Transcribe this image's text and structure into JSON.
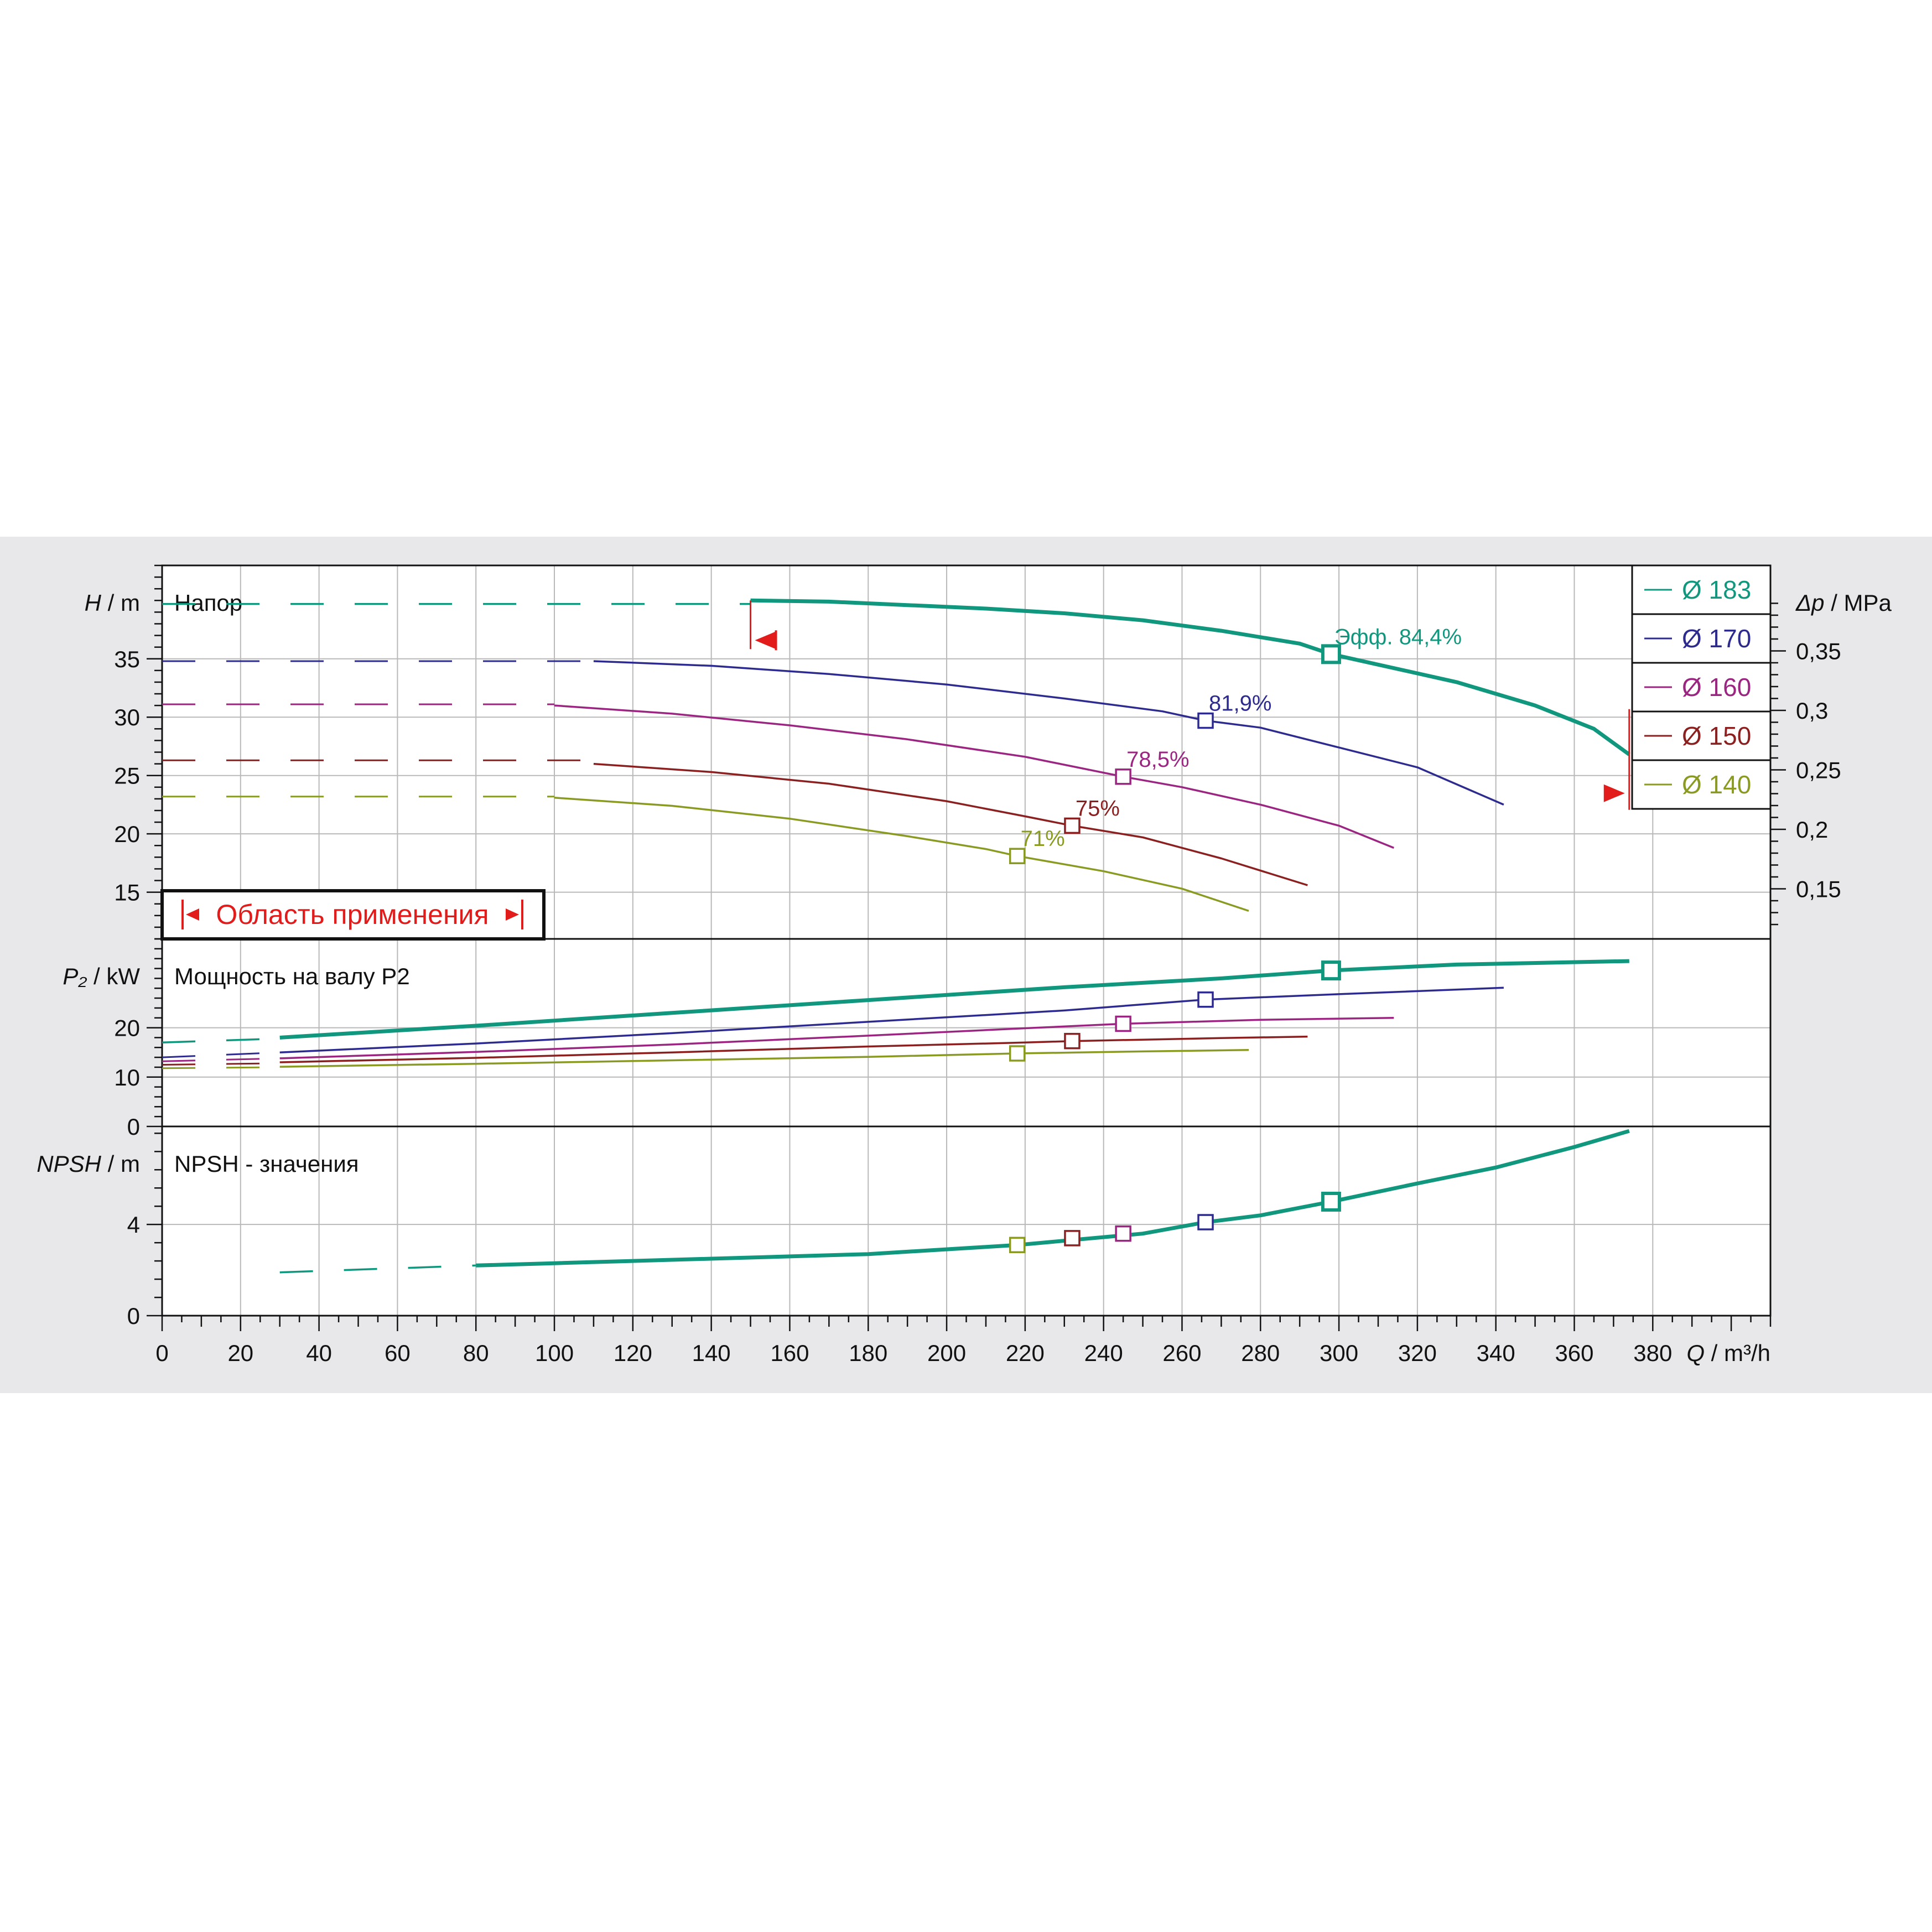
{
  "chart_data": {
    "type": "line",
    "x_axis": {
      "label_symbol": "Q",
      "label_unit": "/ m³/h",
      "min": 0,
      "max": 410,
      "ticks": [
        0,
        20,
        40,
        60,
        80,
        100,
        120,
        140,
        160,
        180,
        200,
        220,
        240,
        260,
        280,
        300,
        320,
        340,
        360,
        380
      ]
    },
    "panels": [
      {
        "id": "head",
        "title": "Напор",
        "y_symbol": "H",
        "y_unit": "/ m",
        "ylim": [
          11,
          43
        ],
        "y_ticks": [
          15,
          20,
          25,
          30,
          35
        ],
        "secondary_axis": {
          "symbol": "Δp",
          "unit": "/ MPa",
          "ticks": [
            0.15,
            0.2,
            0.25,
            0.3,
            0.35
          ]
        },
        "series": [
          {
            "name": "Ø 183",
            "color": "#12977f",
            "bold": true,
            "dashed": [
              [
                0,
                39.7
              ],
              [
                150,
                39.7
              ]
            ],
            "solid": [
              [
                150,
                40.0
              ],
              [
                170,
                39.9
              ],
              [
                190,
                39.6
              ],
              [
                210,
                39.3
              ],
              [
                230,
                38.9
              ],
              [
                250,
                38.3
              ],
              [
                270,
                37.4
              ],
              [
                290,
                36.3
              ],
              [
                298,
                35.4
              ],
              [
                310,
                34.5
              ],
              [
                330,
                33.0
              ],
              [
                350,
                31.0
              ],
              [
                365,
                29.0
              ],
              [
                374,
                26.8
              ]
            ],
            "bep": [
              298,
              35.4
            ],
            "eff_prefix": "Эфф.",
            "eff": "84,4%"
          },
          {
            "name": "Ø 170",
            "color": "#2e2b8f",
            "dashed": [
              [
                0,
                34.8
              ],
              [
                110,
                34.8
              ]
            ],
            "solid": [
              [
                110,
                34.8
              ],
              [
                140,
                34.4
              ],
              [
                170,
                33.7
              ],
              [
                200,
                32.8
              ],
              [
                230,
                31.6
              ],
              [
                255,
                30.5
              ],
              [
                266,
                29.7
              ],
              [
                280,
                29.1
              ],
              [
                300,
                27.4
              ],
              [
                320,
                25.7
              ],
              [
                342,
                22.5
              ]
            ],
            "bep": [
              266,
              29.7
            ],
            "eff": "81,9%"
          },
          {
            "name": "Ø 160",
            "color": "#9b2682",
            "dashed": [
              [
                0,
                31.1
              ],
              [
                100,
                31.1
              ]
            ],
            "solid": [
              [
                100,
                31.0
              ],
              [
                130,
                30.3
              ],
              [
                160,
                29.3
              ],
              [
                190,
                28.1
              ],
              [
                220,
                26.6
              ],
              [
                245,
                24.9
              ],
              [
                260,
                24.0
              ],
              [
                280,
                22.5
              ],
              [
                300,
                20.7
              ],
              [
                314,
                18.8
              ]
            ],
            "bep": [
              245,
              24.9
            ],
            "eff": "78,5%"
          },
          {
            "name": "Ø 150",
            "color": "#8b2020",
            "dashed": [
              [
                0,
                26.3
              ],
              [
                110,
                26.3
              ]
            ],
            "solid": [
              [
                110,
                26.0
              ],
              [
                140,
                25.3
              ],
              [
                170,
                24.3
              ],
              [
                200,
                22.8
              ],
              [
                220,
                21.5
              ],
              [
                232,
                20.7
              ],
              [
                250,
                19.7
              ],
              [
                270,
                17.9
              ],
              [
                292,
                15.6
              ]
            ],
            "bep": [
              232,
              20.7
            ],
            "eff": "75%"
          },
          {
            "name": "Ø 140",
            "color": "#8a9a22",
            "dashed": [
              [
                0,
                23.2
              ],
              [
                100,
                23.2
              ]
            ],
            "solid": [
              [
                100,
                23.1
              ],
              [
                130,
                22.4
              ],
              [
                160,
                21.3
              ],
              [
                190,
                19.8
              ],
              [
                210,
                18.7
              ],
              [
                218,
                18.1
              ],
              [
                240,
                16.8
              ],
              [
                260,
                15.3
              ],
              [
                277,
                13.4
              ]
            ],
            "bep": [
              218,
              18.1
            ],
            "eff": "71%"
          }
        ],
        "limit_markers": [
          {
            "q": 150,
            "side": "left"
          },
          {
            "q": 374,
            "side": "right"
          }
        ],
        "application_range_label": "Область применения"
      },
      {
        "id": "power",
        "title": "Мощность на валу P2",
        "y_symbol": "P₂",
        "y_unit": "/ kW",
        "ylim": [
          0,
          38
        ],
        "y_ticks": [
          0,
          10,
          20
        ],
        "series": [
          {
            "name": "Ø 183",
            "color": "#12977f",
            "bold": true,
            "dashed": [
              [
                0,
                17.0
              ],
              [
                30,
                17.8
              ]
            ],
            "solid": [
              [
                30,
                18.0
              ],
              [
                80,
                20.4
              ],
              [
                130,
                23.0
              ],
              [
                180,
                25.6
              ],
              [
                230,
                28.2
              ],
              [
                270,
                30.0
              ],
              [
                298,
                31.6
              ],
              [
                330,
                32.8
              ],
              [
                374,
                33.5
              ]
            ],
            "bep": [
              298,
              31.6
            ]
          },
          {
            "name": "Ø 170",
            "color": "#2e2b8f",
            "dashed": [
              [
                0,
                14.0
              ],
              [
                30,
                15.0
              ]
            ],
            "solid": [
              [
                30,
                15.0
              ],
              [
                80,
                16.8
              ],
              [
                130,
                18.9
              ],
              [
                180,
                21.2
              ],
              [
                230,
                23.5
              ],
              [
                266,
                25.7
              ],
              [
                300,
                26.8
              ],
              [
                342,
                28.1
              ]
            ],
            "bep": [
              266,
              25.7
            ]
          },
          {
            "name": "Ø 160",
            "color": "#9b2682",
            "dashed": [
              [
                0,
                13.2
              ],
              [
                30,
                13.8
              ]
            ],
            "solid": [
              [
                30,
                13.8
              ],
              [
                80,
                15.1
              ],
              [
                130,
                16.6
              ],
              [
                180,
                18.4
              ],
              [
                220,
                19.9
              ],
              [
                245,
                20.8
              ],
              [
                280,
                21.6
              ],
              [
                314,
                22.0
              ]
            ],
            "bep": [
              245,
              20.8
            ]
          },
          {
            "name": "Ø 150",
            "color": "#8b2020",
            "dashed": [
              [
                0,
                12.5
              ],
              [
                30,
                12.8
              ]
            ],
            "solid": [
              [
                30,
                13.0
              ],
              [
                80,
                13.9
              ],
              [
                130,
                15.0
              ],
              [
                180,
                16.2
              ],
              [
                220,
                17.0
              ],
              [
                232,
                17.3
              ],
              [
                270,
                17.9
              ],
              [
                292,
                18.2
              ]
            ],
            "bep": [
              232,
              17.3
            ]
          },
          {
            "name": "Ø 140",
            "color": "#8a9a22",
            "dashed": [
              [
                0,
                11.8
              ],
              [
                30,
                12.0
              ]
            ],
            "solid": [
              [
                30,
                12.1
              ],
              [
                80,
                12.7
              ],
              [
                130,
                13.4
              ],
              [
                180,
                14.1
              ],
              [
                218,
                14.8
              ],
              [
                250,
                15.2
              ],
              [
                277,
                15.5
              ]
            ],
            "bep": [
              218,
              14.8
            ]
          }
        ]
      },
      {
        "id": "npsh",
        "title": "NPSH - значения",
        "y_symbol": "NPSH",
        "y_unit": "/ m",
        "ylim": [
          0,
          8.3
        ],
        "y_ticks": [
          0,
          4
        ],
        "series": [
          {
            "name": "Ø 183",
            "color": "#12977f",
            "bold": true,
            "dashed": [
              [
                30,
                1.9
              ],
              [
                80,
                2.2
              ]
            ],
            "solid": [
              [
                80,
                2.2
              ],
              [
                100,
                2.3
              ],
              [
                140,
                2.5
              ],
              [
                180,
                2.7
              ],
              [
                218,
                3.1
              ],
              [
                250,
                3.6
              ],
              [
                266,
                4.1
              ],
              [
                280,
                4.4
              ],
              [
                298,
                5.0
              ],
              [
                320,
                5.8
              ],
              [
                340,
                6.5
              ],
              [
                360,
                7.4
              ],
              [
                374,
                8.1
              ]
            ]
          }
        ],
        "markers": [
          {
            "q": 218,
            "y": 3.1,
            "color": "#8a9a22"
          },
          {
            "q": 232,
            "y": 3.4,
            "color": "#8b2020"
          },
          {
            "q": 245,
            "y": 3.6,
            "color": "#9b2682"
          },
          {
            "q": 266,
            "y": 4.1,
            "color": "#2e2b8f"
          },
          {
            "q": 298,
            "y": 5.0,
            "color": "#12977f"
          }
        ]
      }
    ],
    "legend": {
      "placement": "top-right",
      "items": [
        "Ø 183",
        "Ø 170",
        "Ø 160",
        "Ø 150",
        "Ø 140"
      ]
    }
  }
}
